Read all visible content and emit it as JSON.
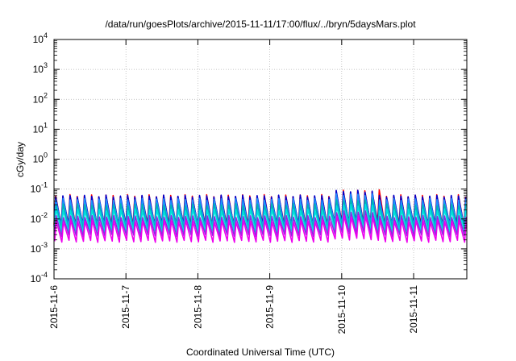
{
  "chart_data": {
    "type": "line",
    "title": "/data/run/goesPlots/archive/2015-11-11/17:00/flux/../bryn/5daysMars.plot",
    "xlabel": "Coordinated Universal Time (UTC)",
    "ylabel": "cGy/day",
    "y_scale": "log",
    "ylim": [
      0.0001,
      10000
    ],
    "xlim": [
      "2015-11-06T00:00",
      "2015-11-11T17:45"
    ],
    "grid": true,
    "legend": "none",
    "y_ticks": [
      {
        "base": "10",
        "exp": "-4"
      },
      {
        "base": "10",
        "exp": "-3"
      },
      {
        "base": "10",
        "exp": "-2"
      },
      {
        "base": "10",
        "exp": "-1"
      },
      {
        "base": "10",
        "exp": "0"
      },
      {
        "base": "10",
        "exp": "1"
      },
      {
        "base": "10",
        "exp": "2"
      },
      {
        "base": "10",
        "exp": "3"
      },
      {
        "base": "10",
        "exp": "4"
      }
    ],
    "x_ticks": [
      "2015-11-6",
      "2015-11-7",
      "2015-11-8",
      "2015-11-9",
      "2015-11-10",
      "2015-11-11"
    ],
    "pattern": {
      "description": "Sawtooth traces: rapid rise to a peak at each spike, then decay to next trough",
      "spike_period_hours": 2.4,
      "enhanced_interval": [
        "2015-11-09T21:00",
        "2015-11-10T12:00"
      ],
      "enhanced_peak_factor": 1.45
    },
    "series": [
      {
        "color": "#ff0000",
        "peak": 0.06,
        "trough": 0.0065
      },
      {
        "color": "#0000cc",
        "peak": 0.058,
        "trough": 0.006
      },
      {
        "color": "#1e90ff",
        "peak": 0.045,
        "trough": 0.0055
      },
      {
        "color": "#00b4b4",
        "peak": 0.03,
        "trough": 0.0045
      },
      {
        "color": "#00e0e0",
        "peak": 0.02,
        "trough": 0.0038
      },
      {
        "color": "#8a2be2",
        "peak": 0.012,
        "trough": 0.0028
      },
      {
        "color": "#ee00ee",
        "peak": 0.0085,
        "trough": 0.0018
      }
    ]
  }
}
